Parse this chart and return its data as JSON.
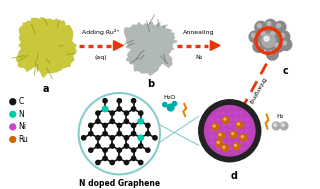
{
  "bg_color": "#ffffff",
  "arrow_color": "#e8360a",
  "orange_color": "#e8830a",
  "label_a": "a",
  "label_b": "b",
  "label_c": "c",
  "label_d": "d",
  "legend_items": [
    {
      "label": "C",
      "color": "#111111"
    },
    {
      "label": "N",
      "color": "#00ccaa"
    },
    {
      "label": "Ni",
      "color": "#cc44cc"
    },
    {
      "label": "Ru",
      "color": "#cc6600"
    }
  ],
  "step1_text_top": "Adding Ru²⁺",
  "step1_text_bot": "(aq)",
  "step2_text_top": "Annealing",
  "step2_text_bot": "N₂",
  "step3_text": "Enlarging",
  "graphene_label": "N doped Graphene",
  "h2o_label": "H₂O",
  "h2_label": "H₂",
  "particle_a_color": "#c8c83a",
  "particle_a_dark": "#8a8a10",
  "particle_b_color": "#b0b8b8",
  "particle_b_dark": "#606868",
  "particle_c_color": "#888888",
  "particle_c_highlight": "#cccccc",
  "particle_c_ring_color": "#e8360a",
  "particle_d_shell_color": "#222222",
  "particle_d_inner_color": "#bb44bb",
  "particle_d_ni_color": "#cc44cc",
  "particle_d_ru_color": "#cc6600",
  "graphene_bg": "#ffffff",
  "graphene_circle_edge": "#88cccc",
  "graphene_bond_color": "#111111",
  "graphene_node_color": "#111111",
  "graphene_dope_color": "#00ccaa",
  "connect_line_color": "#88cccc",
  "water_color": "#00aaaa",
  "h2_color": "#aaaaaa"
}
